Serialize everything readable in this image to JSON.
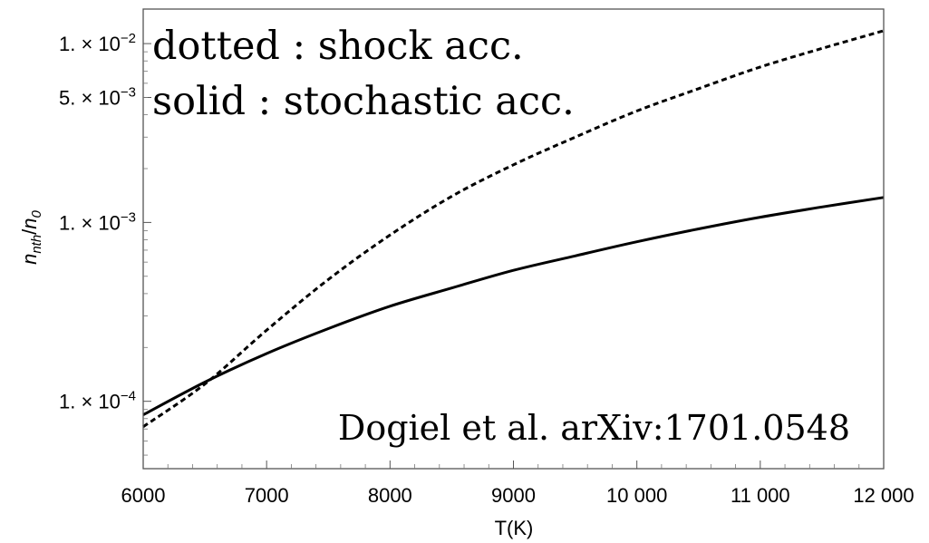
{
  "chart_data": {
    "type": "line",
    "xlabel": "T(K)",
    "ylabel": "n_nth / n_0",
    "ylabel_parts": {
      "n1": "n",
      "s1": "nth",
      "slash": "/",
      "n2": "n",
      "s2": "0"
    },
    "x_scale": "linear",
    "y_scale": "log",
    "xlim": [
      6000,
      12000
    ],
    "ylim": [
      4.2e-05,
      0.0156
    ],
    "x_ticks": [
      {
        "value": 6000,
        "label": "6000"
      },
      {
        "value": 7000,
        "label": "7000"
      },
      {
        "value": 8000,
        "label": "8000"
      },
      {
        "value": 9000,
        "label": "9000"
      },
      {
        "value": 10000,
        "label": "10 000"
      },
      {
        "value": 11000,
        "label": "11 000"
      },
      {
        "value": 12000,
        "label": "12 000"
      }
    ],
    "y_ticks": [
      {
        "value": 0.0001,
        "mantissa": "1.",
        "exponent": "−4"
      },
      {
        "value": 0.001,
        "mantissa": "1.",
        "exponent": "−3"
      },
      {
        "value": 0.005,
        "mantissa": "5.",
        "exponent": "−3"
      },
      {
        "value": 0.01,
        "mantissa": "1.",
        "exponent": "−2"
      }
    ],
    "series": [
      {
        "style": "dotted",
        "color": "#000000",
        "x": [
          6000,
          6500,
          7000,
          7500,
          8000,
          8500,
          9000,
          9500,
          10000,
          10500,
          11000,
          11500,
          12000
        ],
        "values": [
          7.2e-05,
          0.000125,
          0.00025,
          0.00048,
          0.00085,
          0.0014,
          0.0021,
          0.003,
          0.0042,
          0.0056,
          0.0074,
          0.0094,
          0.0118
        ]
      },
      {
        "style": "solid",
        "color": "#000000",
        "x": [
          6000,
          6500,
          7000,
          7500,
          8000,
          8500,
          9000,
          9500,
          10000,
          10500,
          11000,
          11500,
          12000
        ],
        "values": [
          8.4e-05,
          0.000128,
          0.000185,
          0.000255,
          0.00034,
          0.00043,
          0.00054,
          0.00065,
          0.00078,
          0.00092,
          0.00107,
          0.00122,
          0.00138
        ]
      }
    ],
    "annotations": {
      "line1": "dotted : shock acc.",
      "line2": "solid : stochastic acc.",
      "citation": "Dogiel et al. arXiv:1701.0548"
    },
    "grid": false,
    "legend": "none"
  }
}
